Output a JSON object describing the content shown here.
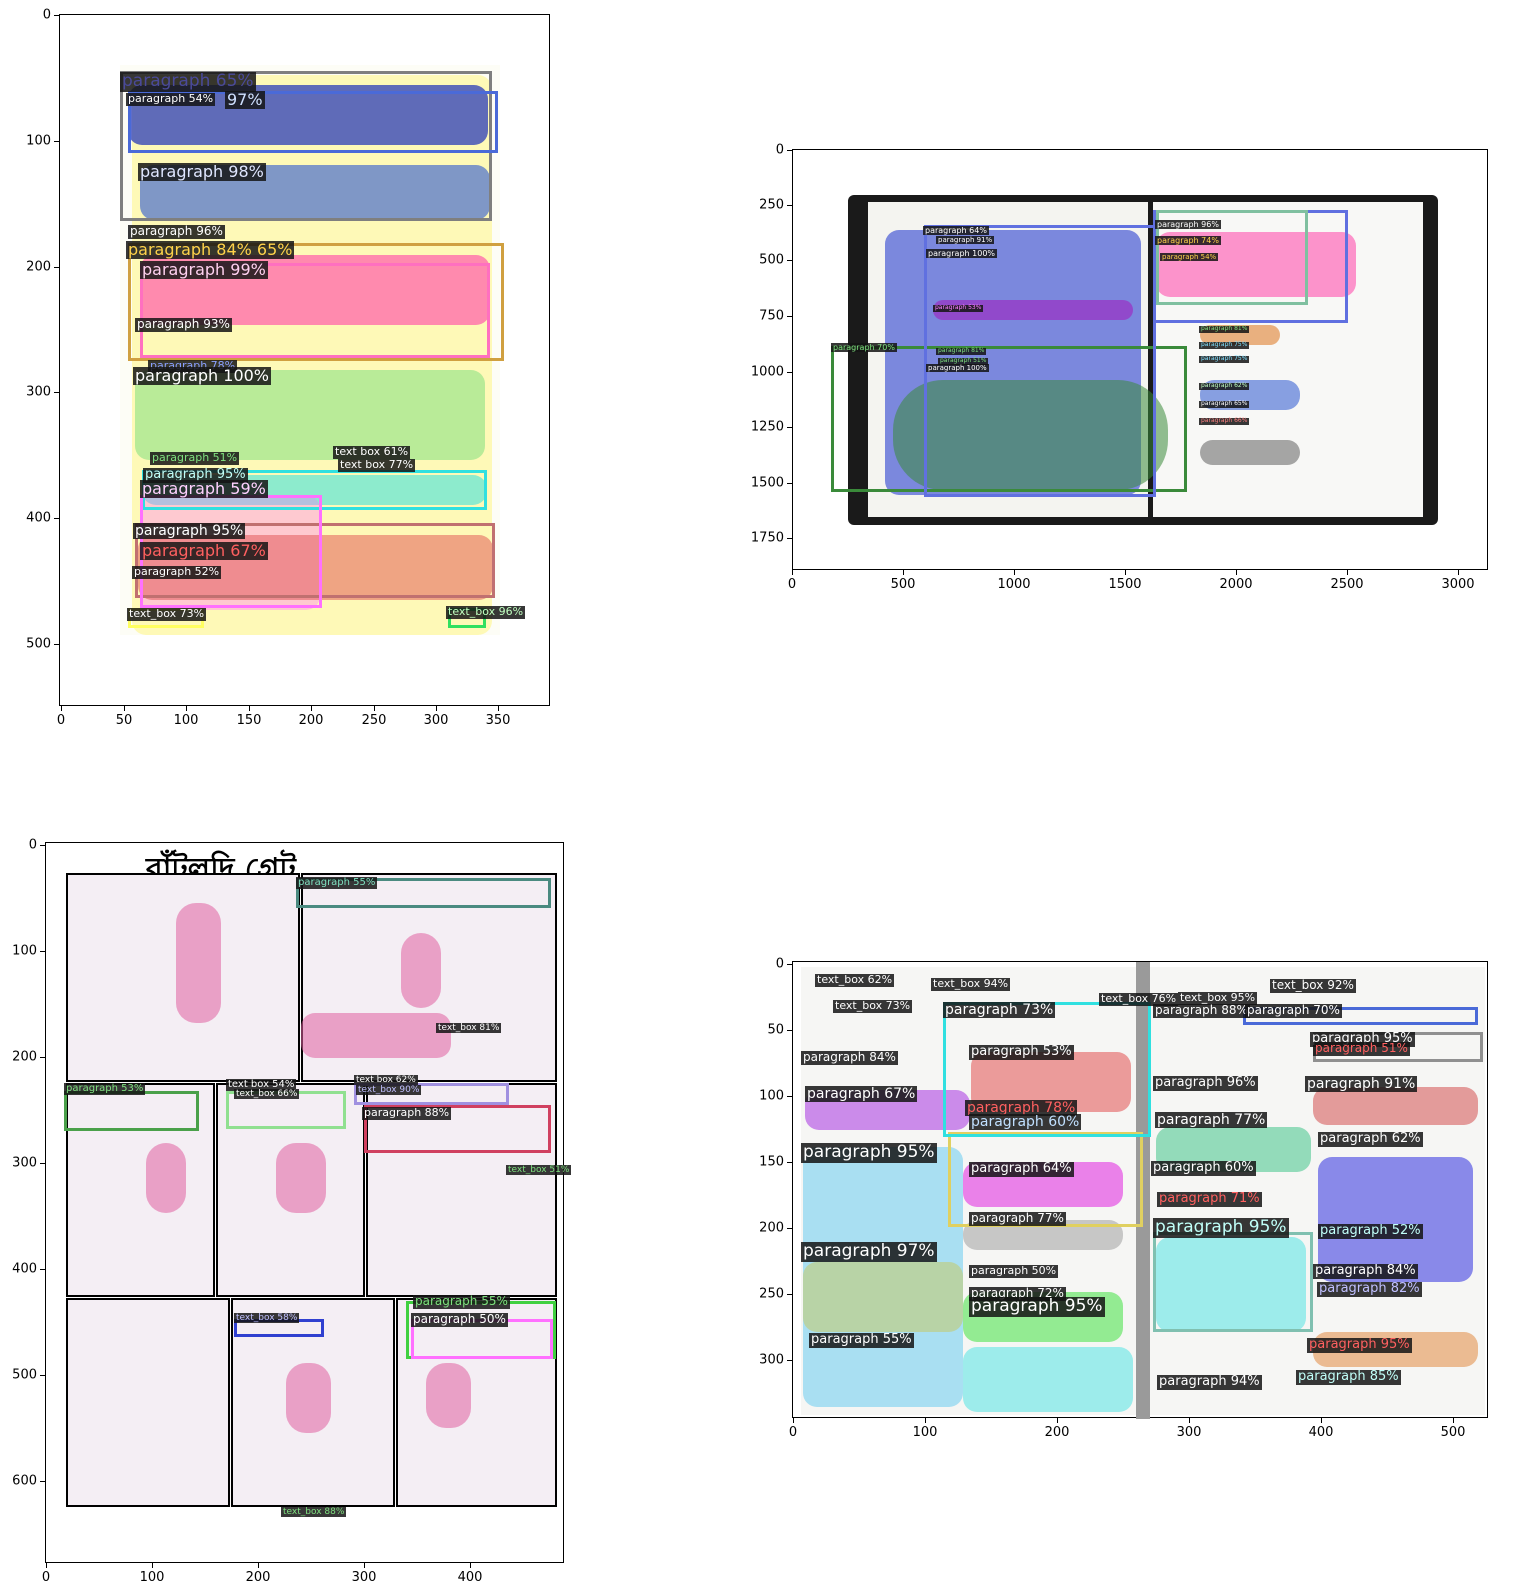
{
  "figure": {
    "panels": [
      {
        "id": "top-left",
        "xticks": [
          "0",
          "50",
          "100",
          "150",
          "200",
          "250",
          "300",
          "350"
        ],
        "yticks": [
          "0",
          "100",
          "200",
          "300",
          "400",
          "500"
        ],
        "labels": [
          {
            "text": "paragraph 65%",
            "color": "#4a4a9a",
            "fill": "#7f7f7f"
          },
          {
            "text": "97%",
            "color": "#cfe0ff",
            "fill": "#2a3fd0"
          },
          {
            "text": "paragraph 54%",
            "color": "#ffffff",
            "fill": "#2ad27a"
          },
          {
            "text": "paragraph 98%",
            "color": "#dfe6ff",
            "fill": "#2a55d0"
          },
          {
            "text": "paragraph 96%",
            "color": "#ffffff",
            "fill": "#9a9a9a"
          },
          {
            "text": "paragraph 84% 65%",
            "color": "#ffd24a",
            "fill": "#d0a040"
          },
          {
            "text": "paragraph 99%",
            "color": "#ffd1f0",
            "fill": "#ff3fa8"
          },
          {
            "text": "paragraph 93%",
            "color": "#ffffff",
            "fill": "#d060b0"
          },
          {
            "text": "paragraph 78%",
            "color": "#8aa0ff",
            "fill": "#2a3fd0"
          },
          {
            "text": "paragraph 100%",
            "color": "#ffffff",
            "fill": "#7fe07f"
          },
          {
            "text": "paragraph 51%",
            "color": "#7fe07f",
            "fill": "#30c030"
          },
          {
            "text": "text box 61%",
            "color": "#ffffff",
            "fill": "#ffffa0"
          },
          {
            "text": "text box 77%",
            "color": "#ffffff",
            "fill": "#ffffa0"
          },
          {
            "text": "paragraph 95%",
            "color": "#c0fff8",
            "fill": "#30e0e0"
          },
          {
            "text": "paragraph 59%",
            "color": "#ffd0ff",
            "fill": "#ff70ff"
          },
          {
            "text": "paragraph 95%",
            "color": "#ffffff",
            "fill": "#a07070"
          },
          {
            "text": "paragraph 67%",
            "color": "#ff6060",
            "fill": "#e03030"
          },
          {
            "text": "paragraph 52%",
            "color": "#ffffff",
            "fill": "#ff9050"
          },
          {
            "text": "text_box 73%",
            "color": "#ffffff",
            "fill": "#ffff60"
          },
          {
            "text": "text_box 96%",
            "color": "#c0ffc0",
            "fill": "#30e060"
          }
        ]
      },
      {
        "id": "top-right",
        "xticks": [
          "0",
          "500",
          "1000",
          "1500",
          "2000",
          "2500",
          "3000"
        ],
        "yticks": [
          "0",
          "250",
          "500",
          "750",
          "1000",
          "1250",
          "1500",
          "1750"
        ],
        "labels": [
          {
            "text": "paragraph 64%",
            "color": "#ffffff"
          },
          {
            "text": "paragraph 91%",
            "color": "#ffffff"
          },
          {
            "text": "paragraph 100%",
            "color": "#ffffff"
          },
          {
            "text": "paragraph 53%",
            "color": "#ff80ff"
          },
          {
            "text": "paragraph 70%",
            "color": "#7fe07f"
          },
          {
            "text": "paragraph 81%",
            "color": "#7fe07f"
          },
          {
            "text": "paragraph 51%",
            "color": "#7fe07f"
          },
          {
            "text": "paragraph 100%",
            "color": "#ffffff"
          },
          {
            "text": "paragraph 96%",
            "color": "#ffffff"
          },
          {
            "text": "paragraph 74%",
            "color": "#ffd24a"
          },
          {
            "text": "paragraph 54%",
            "color": "#ffd24a"
          },
          {
            "text": "paragraph 81%",
            "color": "#7fe07f"
          },
          {
            "text": "paragraph 75%",
            "color": "#7fe0ff"
          },
          {
            "text": "paragraph 75%",
            "color": "#7fe0ff"
          },
          {
            "text": "paragraph 62%",
            "color": "#c0ffc0"
          },
          {
            "text": "paragraph 65%",
            "color": "#ffffff"
          },
          {
            "text": "paragraph 66%",
            "color": "#ff8080"
          }
        ]
      },
      {
        "id": "bottom-left",
        "title_glyph": "বাঁটুলদি গ্রেট",
        "xticks": [
          "0",
          "100",
          "200",
          "300",
          "400"
        ],
        "yticks": [
          "0",
          "100",
          "200",
          "300",
          "400",
          "500",
          "600"
        ],
        "labels": [
          {
            "text": "paragraph 55%",
            "color": "#7fe0c0"
          },
          {
            "text": "text_box 81%",
            "color": "#ffffff"
          },
          {
            "text": "paragraph 53%",
            "color": "#7fe07f"
          },
          {
            "text": "text box 54%",
            "color": "#ffffff"
          },
          {
            "text": "text_box 66%",
            "color": "#ffffff"
          },
          {
            "text": "text box 62%",
            "color": "#ffffff"
          },
          {
            "text": "text_box 90%",
            "color": "#c0c0ff"
          },
          {
            "text": "paragraph 88%",
            "color": "#ffffff"
          },
          {
            "text": "text_box 51%",
            "color": "#7fe07f"
          },
          {
            "text": "paragraph 55%",
            "color": "#7fe07f"
          },
          {
            "text": "paragraph 50%",
            "color": "#ffffff"
          },
          {
            "text": "text_box 58%",
            "color": "#c0c0ff"
          },
          {
            "text": "text_box 88%",
            "color": "#7fe07f"
          }
        ]
      },
      {
        "id": "bottom-right",
        "xticks": [
          "0",
          "100",
          "200",
          "300",
          "400",
          "500"
        ],
        "yticks": [
          "0",
          "50",
          "100",
          "150",
          "200",
          "250",
          "300"
        ],
        "labels": [
          {
            "text": "text_box 62%",
            "color": "#ffffff"
          },
          {
            "text": "text_box 94%",
            "color": "#ffffff"
          },
          {
            "text": "text_box 92%",
            "color": "#ffffff"
          },
          {
            "text": "text_box 73%",
            "color": "#ffffff"
          },
          {
            "text": "text_box 76%",
            "color": "#ffffff"
          },
          {
            "text": "text_box 95%",
            "color": "#ffffff"
          },
          {
            "text": "paragraph 73%",
            "color": "#ffffff"
          },
          {
            "text": "paragraph 88%",
            "color": "#ffffff"
          },
          {
            "text": "paragraph 70%",
            "color": "#ffffff"
          },
          {
            "text": "paragraph 95%",
            "color": "#ffffff"
          },
          {
            "text": "paragraph 51%",
            "color": "#ff6060"
          },
          {
            "text": "paragraph 84%",
            "color": "#ffffff"
          },
          {
            "text": "paragraph 53%",
            "color": "#ffffff"
          },
          {
            "text": "paragraph 67%",
            "color": "#ffffff"
          },
          {
            "text": "paragraph 96%",
            "color": "#ffffff"
          },
          {
            "text": "paragraph 91%",
            "color": "#ffffff"
          },
          {
            "text": "paragraph 78%",
            "color": "#ff6060"
          },
          {
            "text": "paragraph 60%",
            "color": "#c0e0ff"
          },
          {
            "text": "paragraph 77%",
            "color": "#ffffff"
          },
          {
            "text": "paragraph 62%",
            "color": "#ffffff"
          },
          {
            "text": "paragraph 95%",
            "color": "#ffffff"
          },
          {
            "text": "paragraph 64%",
            "color": "#ffffff"
          },
          {
            "text": "paragraph 60%",
            "color": "#ffffff"
          },
          {
            "text": "paragraph 71%",
            "color": "#ff6060"
          },
          {
            "text": "paragraph 77%",
            "color": "#ffffff"
          },
          {
            "text": "paragraph 95%",
            "color": "#c0fff8"
          },
          {
            "text": "paragraph 52%",
            "color": "#c0fff8"
          },
          {
            "text": "paragraph 97%",
            "color": "#ffffff"
          },
          {
            "text": "paragraph 50%",
            "color": "#ffffff"
          },
          {
            "text": "paragraph 84%",
            "color": "#ffffff"
          },
          {
            "text": "paragraph 72%",
            "color": "#ffffff"
          },
          {
            "text": "paragraph 95%",
            "color": "#ffffff"
          },
          {
            "text": "paragraph 82%",
            "color": "#c0c0ff"
          },
          {
            "text": "paragraph 55%",
            "color": "#ffffff"
          },
          {
            "text": "paragraph 95%",
            "color": "#ff6060"
          },
          {
            "text": "paragraph 94%",
            "color": "#ffffff"
          },
          {
            "text": "paragraph 85%",
            "color": "#c0fff8"
          }
        ]
      }
    ]
  }
}
